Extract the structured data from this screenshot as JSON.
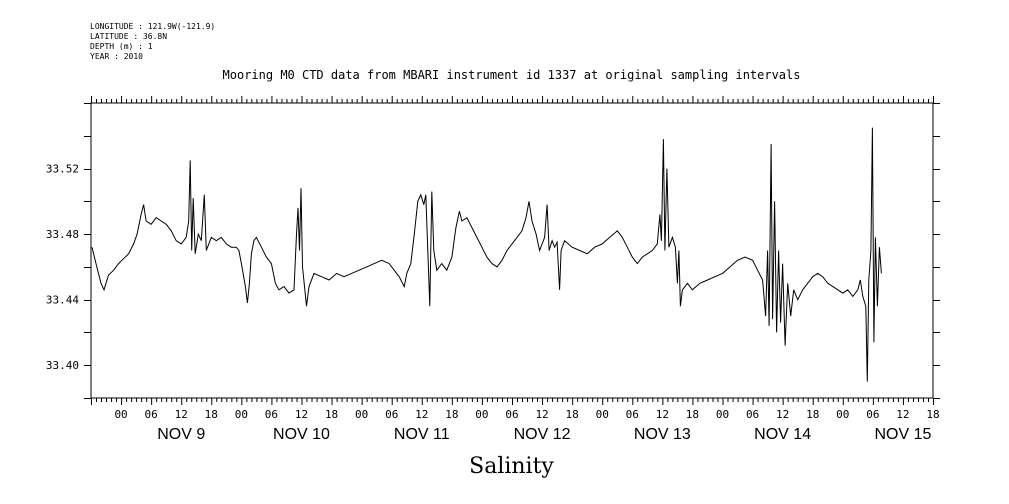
{
  "meta": {
    "longitude": "LONGITUDE : 121.9W(-121.9)",
    "latitude": "LATITUDE : 36.8N",
    "depth": "DEPTH (m) : 1",
    "year": "YEAR : 2010"
  },
  "chart_data": {
    "type": "line",
    "title": "Mooring M0 CTD data from MBARI instrument id 1337 at original sampling intervals",
    "xlabel": "Salinity",
    "ylabel": "",
    "ylim": [
      33.38,
      33.56
    ],
    "yticks": [
      33.4,
      33.44,
      33.48,
      33.52
    ],
    "ytick_labels": [
      "33.40",
      "33.44",
      "33.48",
      "33.52"
    ],
    "xlim_hours": [
      -36,
      132
    ],
    "x_hour_labels": [
      "00",
      "06",
      "12",
      "18",
      "00",
      "06",
      "12",
      "18",
      "00",
      "06",
      "12",
      "18",
      "00",
      "06",
      "12",
      "18",
      "00",
      "06",
      "12",
      "18",
      "00",
      "06",
      "12",
      "18",
      "00",
      "06",
      "12",
      "18"
    ],
    "x_day_labels": [
      "NOV  9",
      "NOV 10",
      "NOV 11",
      "NOV 12",
      "NOV 13",
      "NOV 14",
      "NOV 15"
    ],
    "grid": false,
    "series": [
      {
        "values": [
          [
            -35.8,
            33.472
          ],
          [
            -35.0,
            33.462
          ],
          [
            -34.0,
            33.45
          ],
          [
            -33.4,
            33.446
          ],
          [
            -32.5,
            33.455
          ],
          [
            -31.5,
            33.458
          ],
          [
            -30.5,
            33.462
          ],
          [
            -29.5,
            33.465
          ],
          [
            -28.5,
            33.468
          ],
          [
            -27.5,
            33.474
          ],
          [
            -26.8,
            33.48
          ],
          [
            -26.0,
            33.492
          ],
          [
            -25.5,
            33.498
          ],
          [
            -25.0,
            33.488
          ],
          [
            -24.0,
            33.486
          ],
          [
            -23.0,
            33.49
          ],
          [
            -22.0,
            33.488
          ],
          [
            -21.0,
            33.486
          ],
          [
            -20.0,
            33.482
          ],
          [
            -19.0,
            33.476
          ],
          [
            -18.0,
            33.474
          ],
          [
            -17.0,
            33.478
          ],
          [
            -16.5,
            33.488
          ],
          [
            -16.2,
            33.525
          ],
          [
            -15.9,
            33.47
          ],
          [
            -15.6,
            33.502
          ],
          [
            -15.2,
            33.468
          ],
          [
            -14.6,
            33.48
          ],
          [
            -14.0,
            33.476
          ],
          [
            -13.4,
            33.504
          ],
          [
            -13.0,
            33.47
          ],
          [
            -12.0,
            33.478
          ],
          [
            -11.0,
            33.476
          ],
          [
            -10.0,
            33.478
          ],
          [
            -9.0,
            33.474
          ],
          [
            -8.0,
            33.472
          ],
          [
            -7.0,
            33.472
          ],
          [
            -6.5,
            33.47
          ],
          [
            -6.0,
            33.462
          ],
          [
            -5.2,
            33.448
          ],
          [
            -4.8,
            33.438
          ],
          [
            -4.4,
            33.45
          ],
          [
            -4.0,
            33.468
          ],
          [
            -3.5,
            33.476
          ],
          [
            -3.0,
            33.478
          ],
          [
            -2.0,
            33.472
          ],
          [
            -1.0,
            33.466
          ],
          [
            0.0,
            33.462
          ],
          [
            0.8,
            33.45
          ],
          [
            1.5,
            33.446
          ],
          [
            2.5,
            33.448
          ],
          [
            3.5,
            33.444
          ],
          [
            4.5,
            33.446
          ],
          [
            5.0,
            33.48
          ],
          [
            5.3,
            33.496
          ],
          [
            5.6,
            33.47
          ],
          [
            5.9,
            33.508
          ],
          [
            6.2,
            33.46
          ],
          [
            6.6,
            33.448
          ],
          [
            7.0,
            33.436
          ],
          [
            7.5,
            33.448
          ],
          [
            8.5,
            33.456
          ],
          [
            10.0,
            33.454
          ],
          [
            11.5,
            33.452
          ],
          [
            13.0,
            33.456
          ],
          [
            14.5,
            33.454
          ],
          [
            16.0,
            33.456
          ],
          [
            17.5,
            33.458
          ],
          [
            19.0,
            33.46
          ],
          [
            20.5,
            33.462
          ],
          [
            22.0,
            33.464
          ],
          [
            23.5,
            33.462
          ],
          [
            24.5,
            33.458
          ],
          [
            25.5,
            33.454
          ],
          [
            26.5,
            33.448
          ],
          [
            27.0,
            33.456
          ],
          [
            27.8,
            33.462
          ],
          [
            28.5,
            33.48
          ],
          [
            29.2,
            33.5
          ],
          [
            29.8,
            33.504
          ],
          [
            30.4,
            33.498
          ],
          [
            30.8,
            33.504
          ],
          [
            31.2,
            33.47
          ],
          [
            31.6,
            33.436
          ],
          [
            32.0,
            33.506
          ],
          [
            32.4,
            33.47
          ],
          [
            33.0,
            33.458
          ],
          [
            34.0,
            33.462
          ],
          [
            35.0,
            33.458
          ],
          [
            36.0,
            33.466
          ],
          [
            36.8,
            33.484
          ],
          [
            37.5,
            33.494
          ],
          [
            38.0,
            33.488
          ],
          [
            39.0,
            33.49
          ],
          [
            40.0,
            33.484
          ],
          [
            41.0,
            33.478
          ],
          [
            42.0,
            33.472
          ],
          [
            43.0,
            33.466
          ],
          [
            44.0,
            33.462
          ],
          [
            45.0,
            33.46
          ],
          [
            46.0,
            33.464
          ],
          [
            47.0,
            33.47
          ],
          [
            48.0,
            33.474
          ],
          [
            49.0,
            33.478
          ],
          [
            50.0,
            33.482
          ],
          [
            50.8,
            33.49
          ],
          [
            51.4,
            33.5
          ],
          [
            52.0,
            33.488
          ],
          [
            52.8,
            33.48
          ],
          [
            53.5,
            33.47
          ],
          [
            54.5,
            33.478
          ],
          [
            55.0,
            33.498
          ],
          [
            55.4,
            33.47
          ],
          [
            56.0,
            33.476
          ],
          [
            56.5,
            33.472
          ],
          [
            57.0,
            33.475
          ],
          [
            57.5,
            33.446
          ],
          [
            57.8,
            33.47
          ],
          [
            58.5,
            33.476
          ],
          [
            60.0,
            33.472
          ],
          [
            61.5,
            33.47
          ],
          [
            63.0,
            33.468
          ],
          [
            64.5,
            33.472
          ],
          [
            66.0,
            33.474
          ],
          [
            67.5,
            33.478
          ],
          [
            69.0,
            33.482
          ],
          [
            70.0,
            33.478
          ],
          [
            71.0,
            33.472
          ],
          [
            72.0,
            33.466
          ],
          [
            73.0,
            33.462
          ],
          [
            74.0,
            33.466
          ],
          [
            75.0,
            33.468
          ],
          [
            76.0,
            33.47
          ],
          [
            77.0,
            33.474
          ],
          [
            77.5,
            33.492
          ],
          [
            77.8,
            33.476
          ],
          [
            78.2,
            33.538
          ],
          [
            78.5,
            33.47
          ],
          [
            78.9,
            33.52
          ],
          [
            79.3,
            33.472
          ],
          [
            80.0,
            33.478
          ],
          [
            80.6,
            33.472
          ],
          [
            81.0,
            33.45
          ],
          [
            81.3,
            33.47
          ],
          [
            81.6,
            33.436
          ],
          [
            82.0,
            33.446
          ],
          [
            83.0,
            33.45
          ],
          [
            84.0,
            33.446
          ],
          [
            85.5,
            33.45
          ],
          [
            87.0,
            33.452
          ],
          [
            88.5,
            33.454
          ],
          [
            90.0,
            33.456
          ],
          [
            91.5,
            33.46
          ],
          [
            93.0,
            33.464
          ],
          [
            94.5,
            33.466
          ],
          [
            96.0,
            33.464
          ],
          [
            97.0,
            33.458
          ],
          [
            98.0,
            33.452
          ],
          [
            98.6,
            33.43
          ],
          [
            99.0,
            33.47
          ],
          [
            99.3,
            33.424
          ],
          [
            99.7,
            33.535
          ],
          [
            100.0,
            33.428
          ],
          [
            100.4,
            33.5
          ],
          [
            100.8,
            33.42
          ],
          [
            101.2,
            33.47
          ],
          [
            101.6,
            33.426
          ],
          [
            102.0,
            33.462
          ],
          [
            102.5,
            33.412
          ],
          [
            103.0,
            33.45
          ],
          [
            103.6,
            33.43
          ],
          [
            104.2,
            33.446
          ],
          [
            105.0,
            33.44
          ],
          [
            106.0,
            33.446
          ],
          [
            107.0,
            33.45
          ],
          [
            108.0,
            33.454
          ],
          [
            109.0,
            33.456
          ],
          [
            110.0,
            33.454
          ],
          [
            111.0,
            33.45
          ],
          [
            112.0,
            33.448
          ],
          [
            113.0,
            33.446
          ],
          [
            114.0,
            33.444
          ],
          [
            115.0,
            33.446
          ],
          [
            116.0,
            33.442
          ],
          [
            117.0,
            33.446
          ],
          [
            117.5,
            33.452
          ],
          [
            118.0,
            33.442
          ],
          [
            118.6,
            33.436
          ],
          [
            118.9,
            33.39
          ],
          [
            119.2,
            33.452
          ],
          [
            119.6,
            33.47
          ],
          [
            119.9,
            33.545
          ],
          [
            120.2,
            33.414
          ],
          [
            120.5,
            33.478
          ],
          [
            120.9,
            33.436
          ],
          [
            121.3,
            33.472
          ],
          [
            121.7,
            33.456
          ]
        ]
      }
    ]
  }
}
